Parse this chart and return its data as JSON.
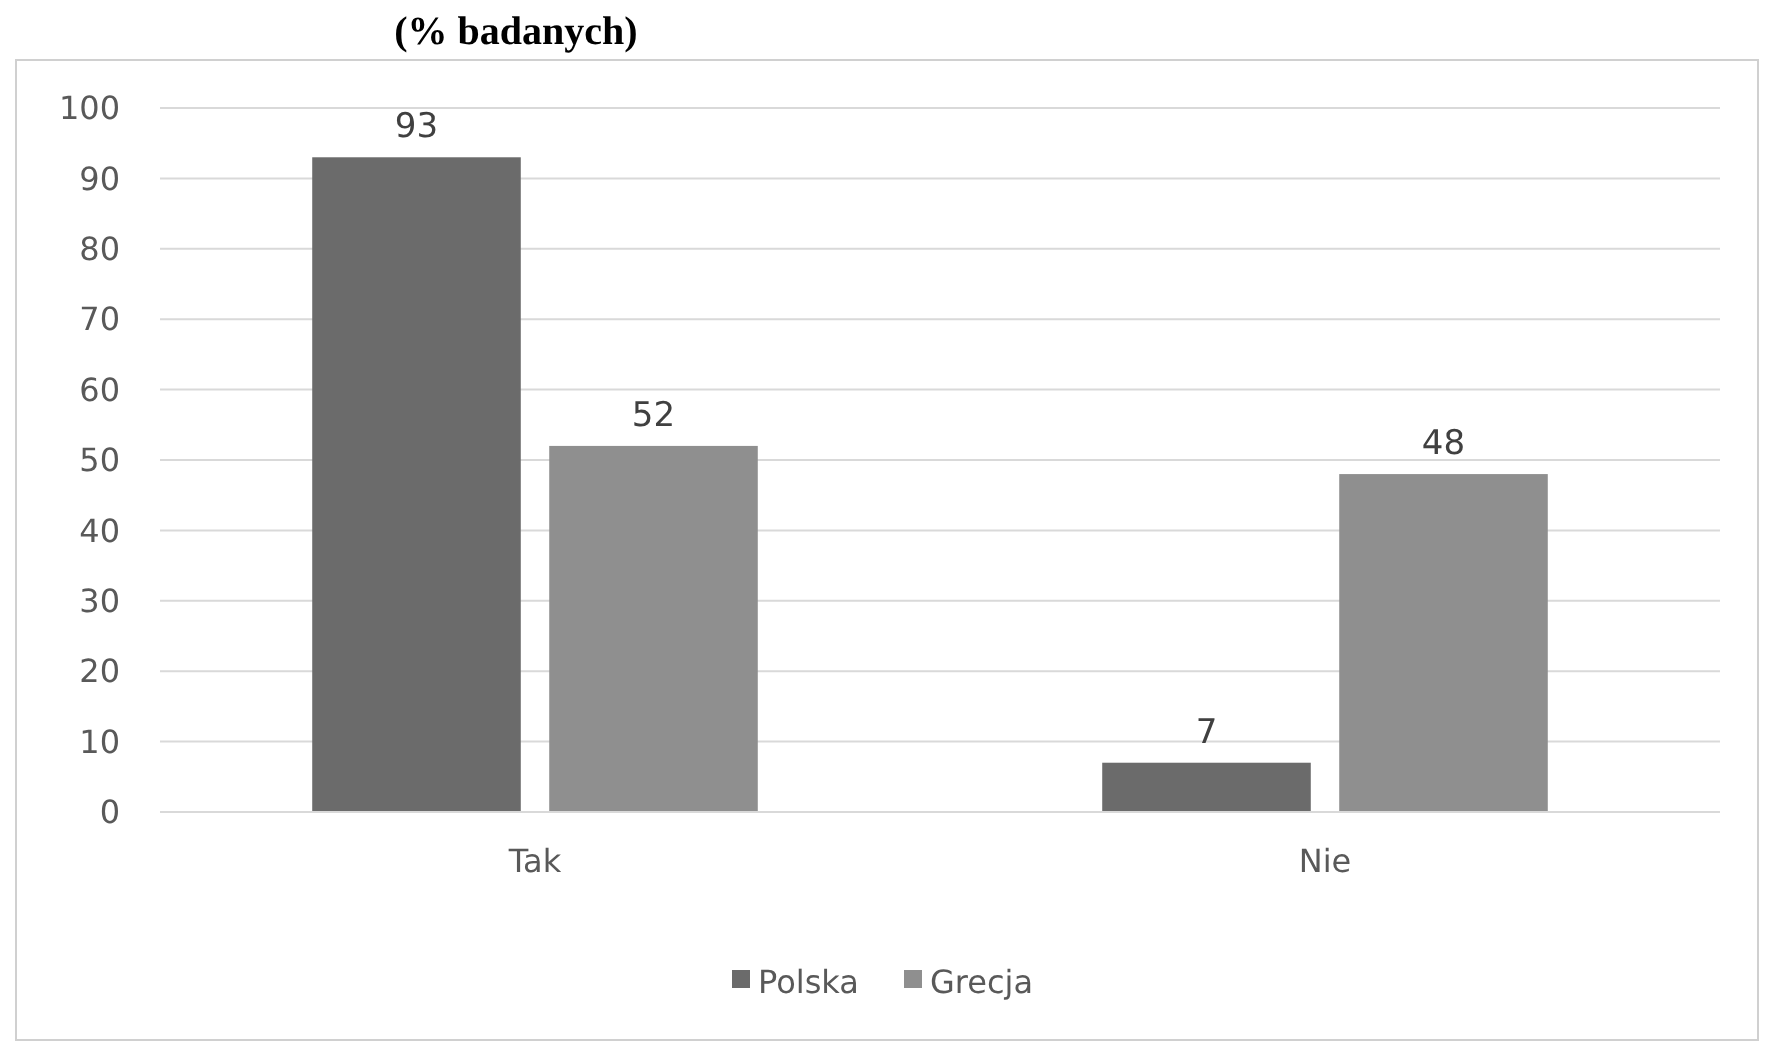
{
  "chart_data": {
    "type": "bar",
    "title": "(% badanych)",
    "categories": [
      "Tak",
      "Nie"
    ],
    "series": [
      {
        "name": "Polska",
        "color": "#6b6b6b",
        "values": [
          93,
          7
        ]
      },
      {
        "name": "Grecja",
        "color": "#8f8f8f",
        "values": [
          52,
          48
        ]
      }
    ],
    "ylim": [
      0,
      100
    ],
    "yticks": [
      0,
      10,
      20,
      30,
      40,
      50,
      60,
      70,
      80,
      90,
      100
    ],
    "grid": "y",
    "legend": "bottom",
    "data_labels": true
  }
}
